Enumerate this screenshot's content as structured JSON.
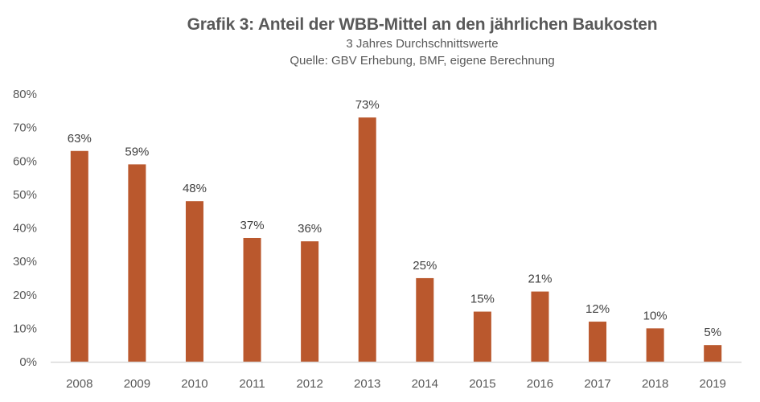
{
  "chart_data": {
    "type": "bar",
    "title": "Grafik 3: Anteil der WBB-Mittel an den jährlichen Baukosten",
    "subtitle": "3 Jahres Durchschnittswerte",
    "source": "Quelle: GBV Erhebung, BMF, eigene Berechnung",
    "xlabel": "",
    "ylabel": "",
    "categories": [
      "2008",
      "2009",
      "2010",
      "2011",
      "2012",
      "2013",
      "2014",
      "2015",
      "2016",
      "2017",
      "2018",
      "2019"
    ],
    "values": [
      63,
      59,
      48,
      37,
      36,
      73,
      25,
      15,
      21,
      12,
      10,
      5
    ],
    "data_labels": [
      "63%",
      "59%",
      "48%",
      "37%",
      "36%",
      "73%",
      "25%",
      "15%",
      "21%",
      "12%",
      "10%",
      "5%"
    ],
    "ylim": [
      0,
      80
    ],
    "yticks": [
      0,
      10,
      20,
      30,
      40,
      50,
      60,
      70,
      80
    ],
    "ytick_labels": [
      "0%",
      "10%",
      "20%",
      "30%",
      "40%",
      "50%",
      "60%",
      "70%",
      "80%"
    ],
    "grid": false,
    "legend": "none",
    "bar_color": "#BA582D",
    "axis_color": "#D9D9D9"
  }
}
